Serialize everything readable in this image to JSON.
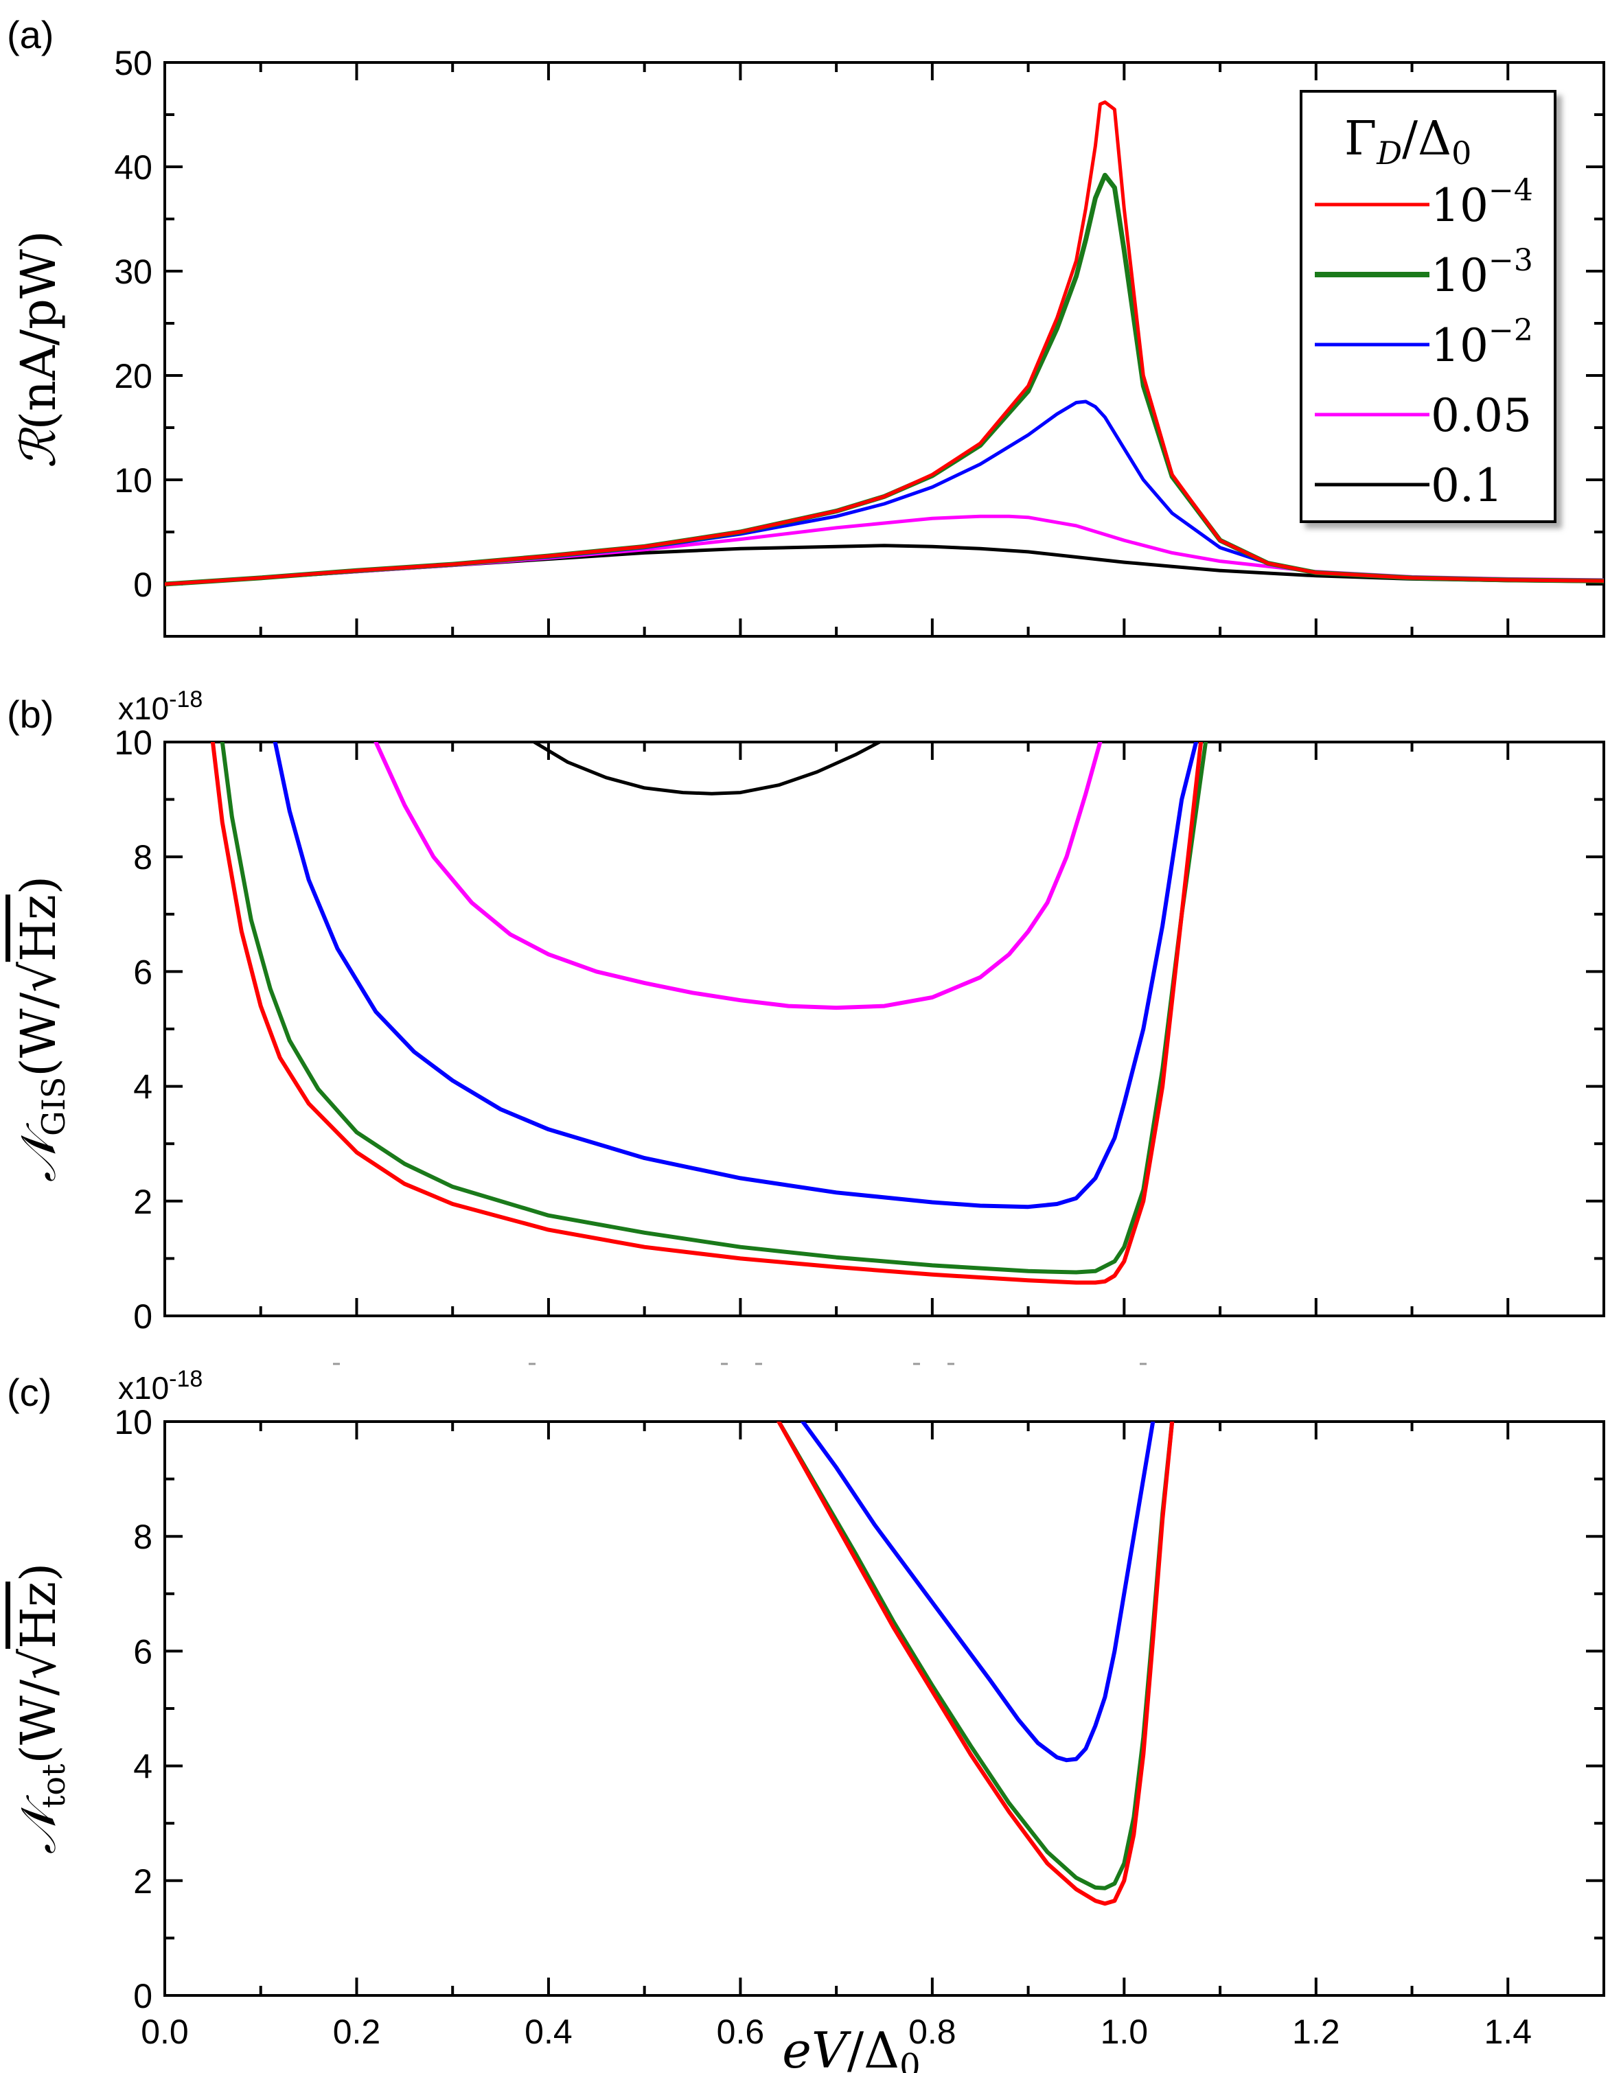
{
  "figure": {
    "xlabel_main": "eV",
    "xlabel_div": "/",
    "xlabel_delta": "Δ",
    "xlabel_sub": "0"
  },
  "legend": {
    "title_gamma": "Γ",
    "title_sub_D": "D",
    "title_div": "/",
    "title_delta": "Δ",
    "title_sub_0": "0",
    "entries": [
      {
        "base": "10",
        "exp": "−4",
        "color": "#ff0000"
      },
      {
        "base": "10",
        "exp": "−3",
        "color": "#1a7a1a"
      },
      {
        "base": "10",
        "exp": "−2",
        "color": "#0000ff"
      },
      {
        "base": "0.05",
        "exp": "",
        "color": "#ff00ff"
      },
      {
        "base": "0.1",
        "exp": "",
        "color": "#000000"
      }
    ]
  },
  "panels": {
    "a": {
      "letter": "(a)",
      "ylabel_R": "ℛ",
      "ylabel_rest": "(nA/pW)"
    },
    "b": {
      "letter": "(b)",
      "multiplier": "x10",
      "multiplier_exp": "-18",
      "ylabel_N": "𝒩",
      "ylabel_sub": "GIS",
      "ylabel_unit": "(W/",
      "ylabel_hz": "Hz",
      "ylabel_close": ")"
    },
    "c": {
      "letter": "(c)",
      "multiplier": "x10",
      "multiplier_exp": "-18",
      "ylabel_N": "𝒩",
      "ylabel_sub": "tot",
      "ylabel_unit": "(W/",
      "ylabel_hz": "Hz",
      "ylabel_close": ")"
    }
  },
  "chart_data": [
    {
      "type": "line",
      "panel": "a",
      "title": "",
      "xlabel": "eV/Δ0",
      "ylabel": "ℛ(nA/pW)",
      "xlim": [
        0,
        1.5
      ],
      "ylim": [
        -5,
        50
      ],
      "xticks": [
        0.0,
        0.2,
        0.4,
        0.6,
        0.8,
        1.0,
        1.2,
        1.4
      ],
      "xtick_labels": [],
      "yticks": [
        0,
        10,
        20,
        30,
        40,
        50
      ],
      "ytick_labels": [
        "0",
        "10",
        "20",
        "30",
        "40",
        "50"
      ],
      "legend_title": "ΓD/Δ0",
      "series": [
        {
          "name": "10^-4",
          "color": "#ff0000",
          "width": 5,
          "x": [
            0,
            0.1,
            0.2,
            0.3,
            0.4,
            0.5,
            0.6,
            0.7,
            0.75,
            0.8,
            0.85,
            0.9,
            0.93,
            0.95,
            0.96,
            0.97,
            0.975,
            0.98,
            0.99,
            1.0,
            1.02,
            1.05,
            1.1,
            1.15,
            1.2,
            1.3,
            1.4,
            1.5
          ],
          "y": [
            0,
            0.6,
            1.3,
            1.9,
            2.7,
            3.6,
            5.0,
            7.0,
            8.4,
            10.5,
            13.5,
            19.0,
            25.5,
            31.0,
            36.0,
            42.0,
            46.0,
            46.2,
            45.5,
            36.0,
            20.0,
            10.5,
            4.2,
            2.0,
            1.1,
            0.6,
            0.4,
            0.3
          ]
        },
        {
          "name": "10^-3",
          "color": "#1a7a1a",
          "width": 7,
          "x": [
            0,
            0.1,
            0.2,
            0.3,
            0.4,
            0.5,
            0.6,
            0.7,
            0.75,
            0.8,
            0.85,
            0.9,
            0.93,
            0.95,
            0.96,
            0.97,
            0.98,
            0.99,
            1.0,
            1.02,
            1.05,
            1.1,
            1.15,
            1.2,
            1.3,
            1.4,
            1.5
          ],
          "y": [
            0,
            0.6,
            1.3,
            1.9,
            2.7,
            3.6,
            5.0,
            7.0,
            8.4,
            10.4,
            13.3,
            18.5,
            24.5,
            29.5,
            33.0,
            37.0,
            39.2,
            38.0,
            32.0,
            19.0,
            10.3,
            4.2,
            2.0,
            1.1,
            0.6,
            0.4,
            0.3
          ]
        },
        {
          "name": "10^-2",
          "color": "#0000ff",
          "width": 5,
          "x": [
            0,
            0.1,
            0.2,
            0.3,
            0.4,
            0.5,
            0.6,
            0.7,
            0.75,
            0.8,
            0.85,
            0.9,
            0.93,
            0.95,
            0.96,
            0.97,
            0.98,
            1.0,
            1.02,
            1.05,
            1.1,
            1.15,
            1.2,
            1.3,
            1.4,
            1.5
          ],
          "y": [
            0,
            0.6,
            1.3,
            1.9,
            2.6,
            3.5,
            4.8,
            6.5,
            7.7,
            9.3,
            11.5,
            14.3,
            16.3,
            17.4,
            17.5,
            17.0,
            16.0,
            13.0,
            10.0,
            6.8,
            3.5,
            2.0,
            1.1,
            0.6,
            0.4,
            0.3
          ]
        },
        {
          "name": "0.05",
          "color": "#ff00ff",
          "width": 5,
          "x": [
            0,
            0.1,
            0.2,
            0.3,
            0.4,
            0.5,
            0.6,
            0.7,
            0.8,
            0.85,
            0.88,
            0.9,
            0.95,
            1.0,
            1.05,
            1.1,
            1.2,
            1.3,
            1.4,
            1.5
          ],
          "y": [
            0,
            0.6,
            1.2,
            1.8,
            2.5,
            3.3,
            4.3,
            5.4,
            6.3,
            6.5,
            6.5,
            6.4,
            5.6,
            4.2,
            3.0,
            2.2,
            1.2,
            0.7,
            0.5,
            0.4
          ]
        },
        {
          "name": "0.1",
          "color": "#000000",
          "width": 5,
          "x": [
            0,
            0.1,
            0.2,
            0.3,
            0.4,
            0.5,
            0.6,
            0.7,
            0.75,
            0.8,
            0.85,
            0.9,
            0.95,
            1.0,
            1.05,
            1.1,
            1.2,
            1.3,
            1.4,
            1.5
          ],
          "y": [
            0,
            0.6,
            1.2,
            1.8,
            2.4,
            3.0,
            3.4,
            3.6,
            3.7,
            3.6,
            3.4,
            3.1,
            2.6,
            2.1,
            1.7,
            1.3,
            0.8,
            0.5,
            0.35,
            0.25
          ]
        }
      ]
    },
    {
      "type": "line",
      "panel": "b",
      "title": "",
      "xlabel": "eV/Δ0",
      "ylabel": "𝒩GIS(W/√Hz)",
      "xlim": [
        0,
        1.5
      ],
      "ylim": [
        0,
        10
      ],
      "xticks": [
        0.0,
        0.2,
        0.4,
        0.6,
        0.8,
        1.0,
        1.2,
        1.4
      ],
      "xtick_labels": [],
      "yticks": [
        0,
        2,
        4,
        6,
        8,
        10
      ],
      "ytick_labels": [
        "0",
        "2",
        "4",
        "6",
        "8",
        "10"
      ],
      "series": [
        {
          "name": "10^-4",
          "color": "#ff0000",
          "width": 6,
          "x": [
            0.05,
            0.06,
            0.08,
            0.1,
            0.12,
            0.15,
            0.2,
            0.25,
            0.3,
            0.4,
            0.5,
            0.6,
            0.7,
            0.8,
            0.9,
            0.95,
            0.97,
            0.98,
            0.99,
            1.0,
            1.02,
            1.04,
            1.06,
            1.08
          ],
          "y": [
            10.0,
            8.6,
            6.7,
            5.4,
            4.5,
            3.7,
            2.85,
            2.3,
            1.95,
            1.5,
            1.2,
            1.0,
            0.85,
            0.72,
            0.62,
            0.58,
            0.58,
            0.6,
            0.7,
            0.95,
            2.0,
            4.0,
            7.0,
            10.0
          ]
        },
        {
          "name": "10^-3",
          "color": "#1a7a1a",
          "width": 6,
          "x": [
            0.06,
            0.07,
            0.09,
            0.11,
            0.13,
            0.16,
            0.2,
            0.25,
            0.3,
            0.4,
            0.5,
            0.6,
            0.7,
            0.8,
            0.9,
            0.95,
            0.97,
            0.99,
            1.0,
            1.02,
            1.04,
            1.06,
            1.085
          ],
          "y": [
            10.0,
            8.7,
            6.9,
            5.7,
            4.8,
            3.95,
            3.2,
            2.65,
            2.25,
            1.75,
            1.45,
            1.2,
            1.02,
            0.88,
            0.78,
            0.76,
            0.78,
            0.95,
            1.2,
            2.2,
            4.3,
            7.0,
            10.0
          ]
        },
        {
          "name": "10^-2",
          "color": "#0000ff",
          "width": 6,
          "x": [
            0.115,
            0.13,
            0.15,
            0.18,
            0.22,
            0.26,
            0.3,
            0.35,
            0.4,
            0.5,
            0.6,
            0.7,
            0.8,
            0.85,
            0.9,
            0.93,
            0.95,
            0.97,
            0.99,
            1.0,
            1.02,
            1.04,
            1.06,
            1.075
          ],
          "y": [
            10.0,
            8.8,
            7.6,
            6.4,
            5.3,
            4.6,
            4.1,
            3.6,
            3.25,
            2.75,
            2.4,
            2.15,
            1.98,
            1.92,
            1.9,
            1.95,
            2.05,
            2.4,
            3.1,
            3.7,
            5.0,
            6.8,
            9.0,
            10.0
          ]
        },
        {
          "name": "0.05",
          "color": "#ff00ff",
          "width": 6,
          "x": [
            0.22,
            0.25,
            0.28,
            0.32,
            0.36,
            0.4,
            0.45,
            0.5,
            0.55,
            0.6,
            0.65,
            0.7,
            0.75,
            0.8,
            0.85,
            0.88,
            0.9,
            0.92,
            0.94,
            0.96,
            0.975
          ],
          "y": [
            10.0,
            8.9,
            8.0,
            7.2,
            6.65,
            6.3,
            6.0,
            5.8,
            5.63,
            5.5,
            5.4,
            5.37,
            5.4,
            5.55,
            5.9,
            6.3,
            6.7,
            7.2,
            8.0,
            9.1,
            10.0
          ]
        },
        {
          "name": "0.1",
          "color": "#000000",
          "width": 5,
          "x": [
            0.385,
            0.42,
            0.46,
            0.5,
            0.54,
            0.57,
            0.6,
            0.64,
            0.68,
            0.72,
            0.745
          ],
          "y": [
            10.0,
            9.65,
            9.38,
            9.2,
            9.12,
            9.1,
            9.12,
            9.25,
            9.48,
            9.78,
            10.0
          ]
        }
      ]
    },
    {
      "type": "line",
      "panel": "c",
      "title": "",
      "xlabel": "eV/Δ0",
      "ylabel": "𝒩tot(W/√Hz)",
      "xlim": [
        0,
        1.5
      ],
      "ylim": [
        0,
        10
      ],
      "xticks": [
        0.0,
        0.2,
        0.4,
        0.6,
        0.8,
        1.0,
        1.2,
        1.4
      ],
      "xtick_labels": [
        "0.0",
        "0.2",
        "0.4",
        "0.6",
        "0.8",
        "1.0",
        "1.2",
        "1.4"
      ],
      "yticks": [
        0,
        2,
        4,
        6,
        8,
        10
      ],
      "ytick_labels": [
        "0",
        "2",
        "4",
        "6",
        "8",
        "10"
      ],
      "series": [
        {
          "name": "10^-4",
          "color": "#ff0000",
          "width": 6,
          "x": [
            0.64,
            0.68,
            0.72,
            0.76,
            0.8,
            0.84,
            0.88,
            0.92,
            0.95,
            0.97,
            0.98,
            0.99,
            1.0,
            1.01,
            1.02,
            1.03,
            1.04,
            1.05
          ],
          "y": [
            10.0,
            8.8,
            7.6,
            6.4,
            5.3,
            4.2,
            3.2,
            2.3,
            1.85,
            1.65,
            1.6,
            1.65,
            2.0,
            2.8,
            4.2,
            6.2,
            8.3,
            10.0
          ]
        },
        {
          "name": "10^-3",
          "color": "#1a7a1a",
          "width": 6,
          "x": [
            0.64,
            0.68,
            0.72,
            0.76,
            0.8,
            0.84,
            0.88,
            0.92,
            0.95,
            0.97,
            0.98,
            0.99,
            1.0,
            1.01,
            1.02,
            1.03,
            1.04,
            1.05
          ],
          "y": [
            10.0,
            8.85,
            7.7,
            6.5,
            5.4,
            4.35,
            3.35,
            2.5,
            2.05,
            1.88,
            1.87,
            1.95,
            2.3,
            3.1,
            4.5,
            6.4,
            8.4,
            10.0
          ]
        },
        {
          "name": "10^-2",
          "color": "#0000ff",
          "width": 6,
          "x": [
            0.665,
            0.7,
            0.74,
            0.78,
            0.82,
            0.86,
            0.89,
            0.91,
            0.93,
            0.94,
            0.95,
            0.96,
            0.97,
            0.98,
            0.99,
            1.0,
            1.01,
            1.02,
            1.03
          ],
          "y": [
            10.0,
            9.2,
            8.2,
            7.3,
            6.4,
            5.5,
            4.8,
            4.4,
            4.15,
            4.1,
            4.12,
            4.3,
            4.7,
            5.2,
            6.0,
            7.0,
            8.0,
            9.0,
            10.0
          ]
        }
      ]
    }
  ]
}
